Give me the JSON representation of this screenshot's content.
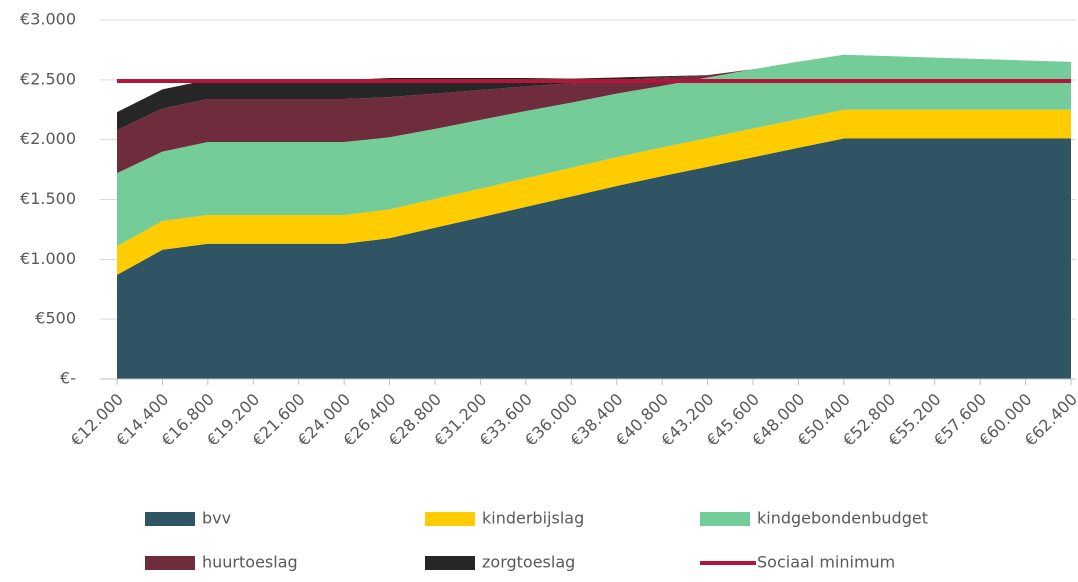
{
  "chart_data": {
    "type": "area",
    "stacked": true,
    "categories": [
      "€12.000",
      "€14.400",
      "€16.800",
      "€19.200",
      "€21.600",
      "€24.000",
      "€26.400",
      "€28.800",
      "€31.200",
      "€33.600",
      "€36.000",
      "€38.400",
      "€40.800",
      "€43.200",
      "€45.600",
      "€48.000",
      "€50.400",
      "€52.800",
      "€55.200",
      "€57.600",
      "€60.000",
      "€62.400"
    ],
    "series": [
      {
        "name": "bvv",
        "color": "#2f5565",
        "values": [
          870,
          1080,
          1130,
          1130,
          1130,
          1130,
          1177,
          1264,
          1351,
          1438,
          1525,
          1613,
          1695,
          1774,
          1853,
          1932,
          2010,
          2010,
          2010,
          2010,
          2010,
          2010
        ]
      },
      {
        "name": "kinderbijslag",
        "color": "#ffcc00",
        "values": [
          240,
          240,
          240,
          240,
          240,
          240,
          240,
          240,
          240,
          240,
          240,
          240,
          240,
          240,
          240,
          240,
          240,
          240,
          240,
          240,
          240,
          240
        ]
      },
      {
        "name": "kindgebondenbudget",
        "color": "#74cc98",
        "values": [
          610,
          580,
          610,
          610,
          610,
          610,
          603,
          586,
          574,
          562,
          545,
          532,
          515,
          505,
          495,
          480,
          460,
          448,
          436,
          424,
          412,
          400
        ]
      },
      {
        "name": "huurtoeslag",
        "color": "#6e2c3c",
        "values": [
          360,
          360,
          360,
          360,
          360,
          360,
          335,
          295,
          250,
          205,
          160,
          115,
          70,
          20,
          0,
          0,
          0,
          0,
          0,
          0,
          0,
          0
        ]
      },
      {
        "name": "zorgtoeslag",
        "color": "#262626",
        "values": [
          150,
          160,
          160,
          160,
          160,
          160,
          160,
          130,
          100,
          70,
          40,
          20,
          10,
          0,
          0,
          0,
          0,
          0,
          0,
          0,
          0,
          0
        ]
      },
      {
        "name": "Sociaal minimum",
        "color": "#b5153a",
        "type": "line",
        "values": [
          2490,
          2490,
          2490,
          2490,
          2490,
          2490,
          2490,
          2490,
          2490,
          2490,
          2490,
          2490,
          2490,
          2490,
          2490,
          2490,
          2490,
          2490,
          2490,
          2490,
          2490,
          2490
        ]
      }
    ],
    "ylim": [
      0,
      3000
    ],
    "yticks": [
      {
        "value": 0,
        "label": "€-"
      },
      {
        "value": 500,
        "label": "€500"
      },
      {
        "value": 1000,
        "label": "€1.000"
      },
      {
        "value": 1500,
        "label": "€1.500"
      },
      {
        "value": 2000,
        "label": "€2.000"
      },
      {
        "value": 2500,
        "label": "€2.500"
      },
      {
        "value": 3000,
        "label": "€3.000"
      }
    ],
    "grid": true,
    "legend": "bottom"
  }
}
